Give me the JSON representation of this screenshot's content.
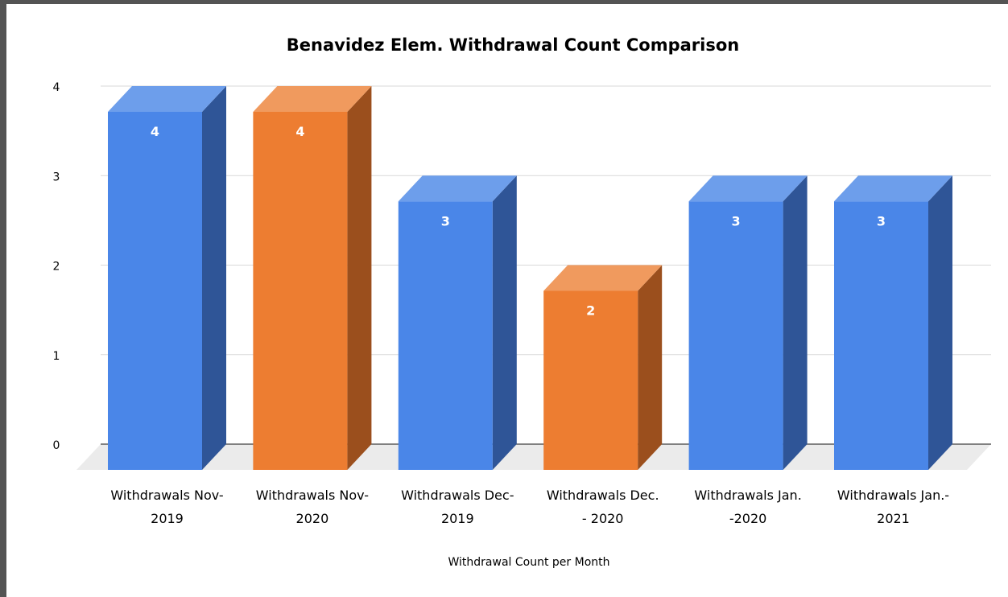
{
  "chart_data": {
    "type": "bar",
    "style": "3d-column",
    "title": "Benavidez Elem. Withdrawal Count Comparison",
    "xlabel": "Withdrawal Count per Month",
    "ylabel": "",
    "ylim": [
      0,
      4
    ],
    "yticks": [
      0,
      1,
      2,
      3,
      4
    ],
    "grid": true,
    "legend": "none",
    "categories": [
      [
        "Withdrawals Nov-",
        "2019"
      ],
      [
        "Withdrawals Nov-",
        "2020"
      ],
      [
        "Withdrawals Dec-",
        "2019"
      ],
      [
        "Withdrawals Dec.",
        "- 2020"
      ],
      [
        "Withdrawals Jan.",
        "-2020"
      ],
      [
        "Withdrawals Jan.-",
        "2021"
      ]
    ],
    "values": [
      4,
      4,
      3,
      2,
      3,
      3
    ],
    "data_labels": [
      "4",
      "4",
      "3",
      "2",
      "3",
      "3"
    ],
    "bar_colors": [
      "blue",
      "orange",
      "blue",
      "orange",
      "blue",
      "blue"
    ],
    "colors": {
      "blue": {
        "front": "#4a86e8",
        "top": "#6d9eeb",
        "side": "#2f5597"
      },
      "orange": {
        "front": "#ed7d31",
        "top": "#f09a5e",
        "side": "#9b4f1d"
      },
      "grid": "#d9d9d9",
      "floor": "#ebebeb",
      "axis": "#404040",
      "text": "#000000",
      "label_text": "#ffffff"
    }
  }
}
